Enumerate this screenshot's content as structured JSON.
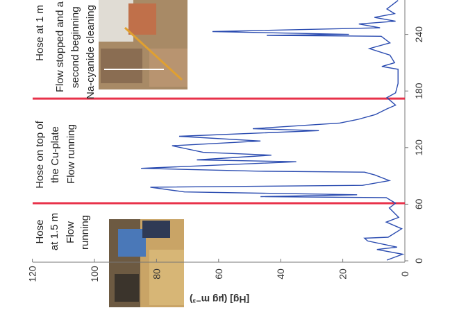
{
  "chart_data": {
    "type": "line",
    "orientation": "figure rotated 90 degrees counter-clockwise",
    "ylabel": "[Hg] (µg m⁻³)",
    "xlabel": "",
    "xlim": [
      0,
      276
    ],
    "ylim": [
      0,
      120
    ],
    "x_ticks": [
      "0",
      "60",
      "120",
      "180",
      "240"
    ],
    "y_ticks": [
      "0",
      "20",
      "40",
      "60",
      "80",
      "100",
      "120"
    ],
    "grid": false,
    "series": [
      {
        "color": "#2a4bb0",
        "points": [
          [
            0.7,
            5.8
          ],
          [
            7,
            0.7
          ],
          [
            12,
            9
          ],
          [
            14.5,
            2.5
          ],
          [
            21,
            12
          ],
          [
            24,
            13
          ],
          [
            25,
            5.4
          ],
          [
            34,
            1
          ],
          [
            41,
            6
          ],
          [
            46,
            2
          ],
          [
            56,
            5
          ],
          [
            61,
            3
          ],
          [
            67,
            6
          ],
          [
            68,
            46.5
          ],
          [
            70,
            15.4
          ],
          [
            73,
            71
          ],
          [
            78,
            82
          ],
          [
            80,
            13.6
          ],
          [
            85,
            5
          ],
          [
            91,
            9.7
          ],
          [
            94,
            13
          ],
          [
            95,
            47
          ],
          [
            98,
            85
          ],
          [
            105,
            35
          ],
          [
            107,
            67
          ],
          [
            112,
            43
          ],
          [
            115,
            65
          ],
          [
            122,
            75
          ],
          [
            127,
            46.5
          ],
          [
            132,
            72.7
          ],
          [
            138,
            27.7
          ],
          [
            140,
            49
          ],
          [
            146,
            21
          ],
          [
            150,
            15
          ],
          [
            155,
            9.5
          ],
          [
            161,
            5.8
          ],
          [
            165,
            3
          ],
          [
            173,
            5.8
          ],
          [
            178,
            3
          ],
          [
            188,
            2.2
          ],
          [
            203,
            2.2
          ],
          [
            206,
            7.4
          ],
          [
            210,
            3.3
          ],
          [
            218,
            4.8
          ],
          [
            225,
            11.4
          ],
          [
            231,
            4.8
          ],
          [
            238,
            7.6
          ],
          [
            239,
            44.5
          ],
          [
            240,
            18
          ],
          [
            243,
            62
          ],
          [
            247,
            8
          ],
          [
            251,
            14.8
          ],
          [
            254,
            3
          ],
          [
            258,
            9.8
          ],
          [
            262,
            3.3
          ],
          [
            267,
            5.8
          ],
          [
            276,
            2.2
          ]
        ]
      }
    ],
    "vertical_markers": [
      {
        "x": 61,
        "color": "#e8324a"
      },
      {
        "x": 172,
        "color": "#e8324a"
      }
    ],
    "annotations": {
      "phase1": [
        "Hose",
        "at 1.5 m",
        "Flow",
        "running"
      ],
      "phase2": [
        "Hose on top of",
        "the Cu-plate",
        "Flow running"
      ],
      "phase3": [
        "Hose at 1 m",
        "Flow stopped and a",
        "second beginning",
        "Na-cyanide cleaning"
      ]
    }
  }
}
